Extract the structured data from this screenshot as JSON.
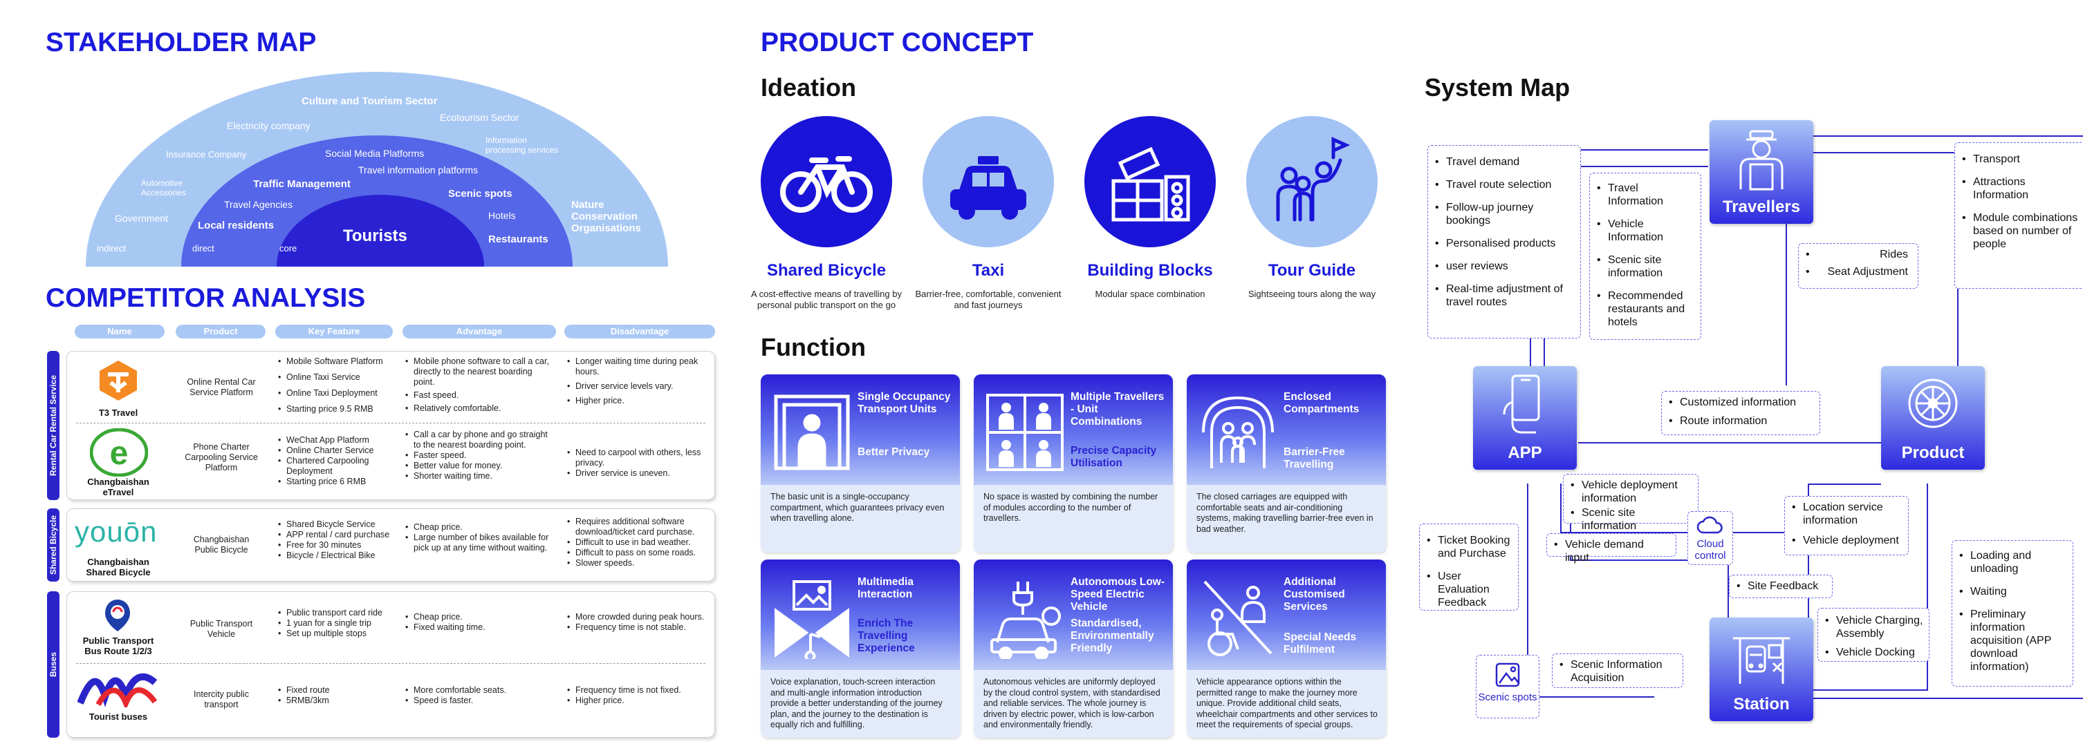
{
  "stakeholder": {
    "title": "STAKEHOLDER MAP",
    "outer": {
      "label": "Culture and Tourism Sector",
      "items": [
        "Electricity company",
        "Ecotourism Sector",
        "Insurance Company",
        "Information processing services",
        "Automotive Accessories",
        "Government",
        "Nature Conservation Organisations",
        "indirect"
      ]
    },
    "middle": {
      "items": [
        "Social Media Platforms",
        "Travel information platforms",
        "Traffic Management",
        "Travel Agencies",
        "Scenic spots",
        "Hotels",
        "Local residents",
        "Restaurants",
        "direct"
      ]
    },
    "core": {
      "label": "Tourists",
      "ring": "core"
    },
    "colors": {
      "outer": "#a8c8f4",
      "middle": "#5566e8",
      "core": "#2a22d2"
    }
  },
  "competitor": {
    "title": "COMPETITOR ANALYSIS",
    "headers": [
      "Name",
      "Product",
      "Key Feature",
      "Advantage",
      "Disadvantage"
    ],
    "categories": [
      "Rental Car Rental Service",
      "Shared Bicycle",
      "Buses"
    ],
    "rows": [
      {
        "name": "T3 Travel",
        "product": "Online Rental Car Service Platform",
        "features": [
          "Mobile Software Platform",
          "Online Taxi Service",
          "Online Taxi Deployment",
          "Starting price 9.5 RMB"
        ],
        "advantages": [
          "Mobile phone software to call a car, directly to the nearest boarding point.",
          "Fast speed.",
          "Relatively comfortable."
        ],
        "disadvantages": [
          "Longer waiting time during peak hours.",
          "Driver service levels vary.",
          "Higher price."
        ]
      },
      {
        "name": "Changbaishan eTravel",
        "product": "Phone Charter Carpooling Service Platform",
        "features": [
          "WeChat App Platform",
          "Online Charter Service",
          "Chartered Carpooling Deployment",
          "Starting price 6 RMB"
        ],
        "advantages": [
          "Call a car by phone and go straight to the nearest boarding point.",
          "Faster speed.",
          "Better value for money.",
          "Shorter waiting time."
        ],
        "disadvantages": [
          "Need to carpool with others, less privacy.",
          "Driver service is uneven."
        ]
      },
      {
        "name": "Changbaishan Shared Bicycle",
        "product": "Changbaishan Public Bicycle",
        "features": [
          "Shared Bicycle Service",
          "APP rental / card purchase",
          "Free for 30 minutes",
          "Bicycle / Electrical Bike"
        ],
        "advantages": [
          "Cheap price.",
          "Large number of bikes available for pick up at any time without waiting."
        ],
        "disadvantages": [
          "Requires additional software download/ticket card purchase.",
          "Difficult to use in bad weather.",
          "Difficult to pass on some roads.",
          "Slower speeds."
        ]
      },
      {
        "name": "Public Transport Bus Route 1/2/3",
        "product": "Public Transport Vehicle",
        "features": [
          "Public transport card ride",
          "1 yuan for a single trip",
          "Set up multiple stops"
        ],
        "advantages": [
          "Cheap price.",
          "Fixed waiting time."
        ],
        "disadvantages": [
          "More crowded during peak hours.",
          "Frequency time is not stable."
        ]
      },
      {
        "name": "Tourist buses",
        "product": "Intercity public transport",
        "features": [
          "Fixed route",
          "5RMB/3km"
        ],
        "advantages": [
          "More comfortable seats.",
          "Speed is faster."
        ],
        "disadvantages": [
          "Frequency time is not fixed.",
          "Higher price."
        ]
      }
    ],
    "logo_text": {
      "youon": "youōn"
    }
  },
  "concept": {
    "title": "PRODUCT CONCEPT",
    "ideation_title": "Ideation",
    "ideation": [
      {
        "title": "Shared Bicycle",
        "desc": "A cost-effective means of travelling by personal public transport on the go",
        "icon": "bicycle-icon"
      },
      {
        "title": "Taxi",
        "desc": "Barrier-free, comfortable, convenient and fast journeys",
        "icon": "taxi-icon"
      },
      {
        "title": "Building Blocks",
        "desc": "Modular space combination",
        "icon": "building-blocks-icon"
      },
      {
        "title": "Tour Guide",
        "desc": "Sightseeing tours along the way",
        "icon": "tour-guide-icon"
      }
    ],
    "function_title": "Function",
    "functions": [
      {
        "title": "Single Occupancy Transport Units",
        "sub": "Better Privacy",
        "desc": "The basic unit is a single-occupancy compartment, which guarantees privacy even when travelling alone.",
        "icon": "single-person-icon"
      },
      {
        "title": "Multiple Travellers - Unit Combinations",
        "sub": "Precise Capacity Utilisation",
        "desc": "No space is wasted by combining the number of modules according to the number of travellers.",
        "icon": "multiple-units-icon"
      },
      {
        "title": "Enclosed Compartments",
        "sub": "Barrier-Free Travelling",
        "desc": "The closed carriages are equipped with comfortable seats and air-conditioning systems, making travelling barrier-free even in bad weather.",
        "icon": "family-umbrella-icon"
      },
      {
        "title": "Multimedia Interaction",
        "sub": "Enrich The Travelling Experience",
        "desc": "Voice explanation, touch-screen interaction and multi-angle information introduction provide a better understanding of the journey plan, and the journey to the destination is equally rich and fulfilling.",
        "icon": "multimedia-icon"
      },
      {
        "title": "Autonomous Low-Speed Electric Vehicle",
        "sub": "Standardised, Environmentally Friendly",
        "desc": "Autonomous vehicles are uniformly deployed by the cloud control system, with standardised and reliable services. The whole journey is driven by electric power, which is low-carbon and environmentally friendly.",
        "icon": "electric-vehicle-icon"
      },
      {
        "title": "Additional Customised Services",
        "sub": "Special Needs Fulfilment",
        "desc": "Vehicle appearance options within the permitted range to make the journey more unique. Provide additional child seats, wheelchair compartments and other services to meet the requirements of special groups.",
        "icon": "wheelchair-icon"
      }
    ]
  },
  "system": {
    "title": "System Map",
    "nodes": {
      "travellers": "Travellers",
      "app": "APP",
      "product": "Product",
      "station": "Station",
      "cloud": "Cloud control",
      "scenic": "Scenic spots"
    },
    "boxes": {
      "traveller_needs": [
        "Travel demand",
        "Travel route selection",
        "Follow-up journey bookings",
        "Personalised products",
        "user reviews",
        "Real-time adjustment of travel routes"
      ],
      "app_info": [
        "Travel Information",
        "Vehicle Information",
        "Scenic site information",
        "Recommended restaurants and hotels"
      ],
      "product_to_traveller": [
        "Transport",
        "Attractions Information",
        "Module combinations based on number of people"
      ],
      "rides": [
        "Rides",
        "Seat Adjustment"
      ],
      "customized": [
        "Customized information",
        "Route information"
      ],
      "deployment": [
        "Vehicle deployment information",
        "Scenic site information"
      ],
      "location": [
        "Location service information",
        "Vehicle deployment"
      ],
      "ticket": [
        "Ticket Booking and Purchase",
        "User Evaluation Feedback"
      ],
      "demand_input": [
        "Vehicle demand input"
      ],
      "site_feedback": [
        "Site Feedback"
      ],
      "charging": [
        "Vehicle Charging, Assembly",
        "Vehicle Docking"
      ],
      "scenic_info": [
        "Scenic Information Acquisition"
      ],
      "loading": [
        "Loading and unloading",
        "Waiting",
        "Preliminary information acquisition (APP download information)"
      ]
    },
    "line_color": "#2b25c9"
  }
}
